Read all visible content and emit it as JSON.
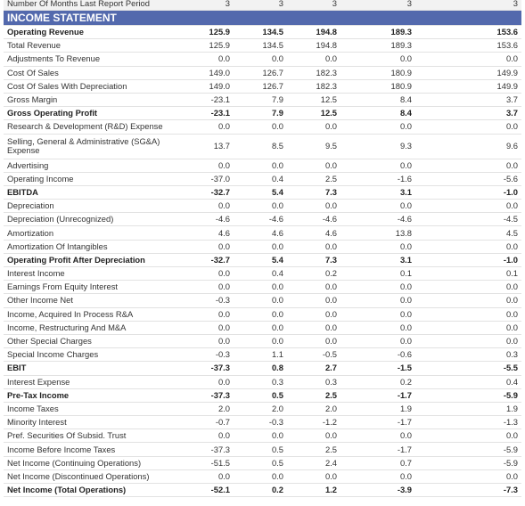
{
  "top_row": {
    "label": "Number Of Months Last Report Period",
    "values": [
      "3",
      "3",
      "3",
      "3",
      "3"
    ]
  },
  "section_title": "INCOME STATEMENT",
  "rows": [
    {
      "label": "Operating Revenue",
      "values": [
        "125.9",
        "134.5",
        "194.8",
        "189.3",
        "153.6"
      ],
      "bold": true
    },
    {
      "label": "Total Revenue",
      "values": [
        "125.9",
        "134.5",
        "194.8",
        "189.3",
        "153.6"
      ]
    },
    {
      "label": "Adjustments To Revenue",
      "values": [
        "0.0",
        "0.0",
        "0.0",
        "0.0",
        "0.0"
      ]
    },
    {
      "label": "Cost Of Sales",
      "values": [
        "149.0",
        "126.7",
        "182.3",
        "180.9",
        "149.9"
      ]
    },
    {
      "label": "Cost Of Sales With Depreciation",
      "values": [
        "149.0",
        "126.7",
        "182.3",
        "180.9",
        "149.9"
      ]
    },
    {
      "label": "Gross Margin",
      "values": [
        "-23.1",
        "7.9",
        "12.5",
        "8.4",
        "3.7"
      ]
    },
    {
      "label": "Gross Operating Profit",
      "values": [
        "-23.1",
        "7.9",
        "12.5",
        "8.4",
        "3.7"
      ],
      "bold": true
    },
    {
      "label": "Research & Development (R&D) Expense",
      "values": [
        "0.0",
        "0.0",
        "0.0",
        "0.0",
        "0.0"
      ]
    },
    {
      "label": "Selling, General & Administrative (SG&A) Expense",
      "values": [
        "13.7",
        "8.5",
        "9.5",
        "9.3",
        "9.6"
      ]
    },
    {
      "label": "Advertising",
      "values": [
        "0.0",
        "0.0",
        "0.0",
        "0.0",
        "0.0"
      ]
    },
    {
      "label": "Operating Income",
      "values": [
        "-37.0",
        "0.4",
        "2.5",
        "-1.6",
        "-5.6"
      ]
    },
    {
      "label": "EBITDA",
      "values": [
        "-32.7",
        "5.4",
        "7.3",
        "3.1",
        "-1.0"
      ],
      "bold": true
    },
    {
      "label": "Depreciation",
      "values": [
        "0.0",
        "0.0",
        "0.0",
        "0.0",
        "0.0"
      ]
    },
    {
      "label": "Depreciation (Unrecognized)",
      "values": [
        "-4.6",
        "-4.6",
        "-4.6",
        "-4.6",
        "-4.5"
      ]
    },
    {
      "label": "Amortization",
      "values": [
        "4.6",
        "4.6",
        "4.6",
        "13.8",
        "4.5"
      ]
    },
    {
      "label": "Amortization Of Intangibles",
      "values": [
        "0.0",
        "0.0",
        "0.0",
        "0.0",
        "0.0"
      ]
    },
    {
      "label": "Operating Profit After Depreciation",
      "values": [
        "-32.7",
        "5.4",
        "7.3",
        "3.1",
        "-1.0"
      ],
      "bold": true
    },
    {
      "label": "Interest Income",
      "values": [
        "0.0",
        "0.4",
        "0.2",
        "0.1",
        "0.1"
      ]
    },
    {
      "label": "Earnings From Equity Interest",
      "values": [
        "0.0",
        "0.0",
        "0.0",
        "0.0",
        "0.0"
      ]
    },
    {
      "label": "Other Income Net",
      "values": [
        "-0.3",
        "0.0",
        "0.0",
        "0.0",
        "0.0"
      ]
    },
    {
      "label": "Income, Acquired In Process R&A",
      "values": [
        "0.0",
        "0.0",
        "0.0",
        "0.0",
        "0.0"
      ]
    },
    {
      "label": "Income, Restructuring And M&A",
      "values": [
        "0.0",
        "0.0",
        "0.0",
        "0.0",
        "0.0"
      ]
    },
    {
      "label": "Other Special Charges",
      "values": [
        "0.0",
        "0.0",
        "0.0",
        "0.0",
        "0.0"
      ]
    },
    {
      "label": "Special Income Charges",
      "values": [
        "-0.3",
        "1.1",
        "-0.5",
        "-0.6",
        "0.3"
      ]
    },
    {
      "label": "EBIT",
      "values": [
        "-37.3",
        "0.8",
        "2.7",
        "-1.5",
        "-5.5"
      ],
      "bold": true
    },
    {
      "label": "Interest Expense",
      "values": [
        "0.0",
        "0.3",
        "0.3",
        "0.2",
        "0.4"
      ]
    },
    {
      "label": "Pre-Tax Income",
      "values": [
        "-37.3",
        "0.5",
        "2.5",
        "-1.7",
        "-5.9"
      ],
      "bold": true
    },
    {
      "label": "Income Taxes",
      "values": [
        "2.0",
        "2.0",
        "2.0",
        "1.9",
        "1.9"
      ]
    },
    {
      "label": "Minority Interest",
      "values": [
        "-0.7",
        "-0.3",
        "-1.2",
        "-1.7",
        "-1.3"
      ]
    },
    {
      "label": "Pref. Securities Of Subsid. Trust",
      "values": [
        "0.0",
        "0.0",
        "0.0",
        "0.0",
        "0.0"
      ]
    },
    {
      "label": "Income Before Income Taxes",
      "values": [
        "-37.3",
        "0.5",
        "2.5",
        "-1.7",
        "-5.9"
      ]
    },
    {
      "label": "Net Income (Continuing Operations)",
      "values": [
        "-51.5",
        "0.5",
        "2.4",
        "0.7",
        "-5.9"
      ]
    },
    {
      "label": "Net Income (Discontinued Operations)",
      "values": [
        "0.0",
        "0.0",
        "0.0",
        "0.0",
        "0.0"
      ]
    },
    {
      "label": "Net Income (Total Operations)",
      "values": [
        "-52.1",
        "0.2",
        "1.2",
        "-3.9",
        "-7.3"
      ],
      "bold": true
    }
  ]
}
